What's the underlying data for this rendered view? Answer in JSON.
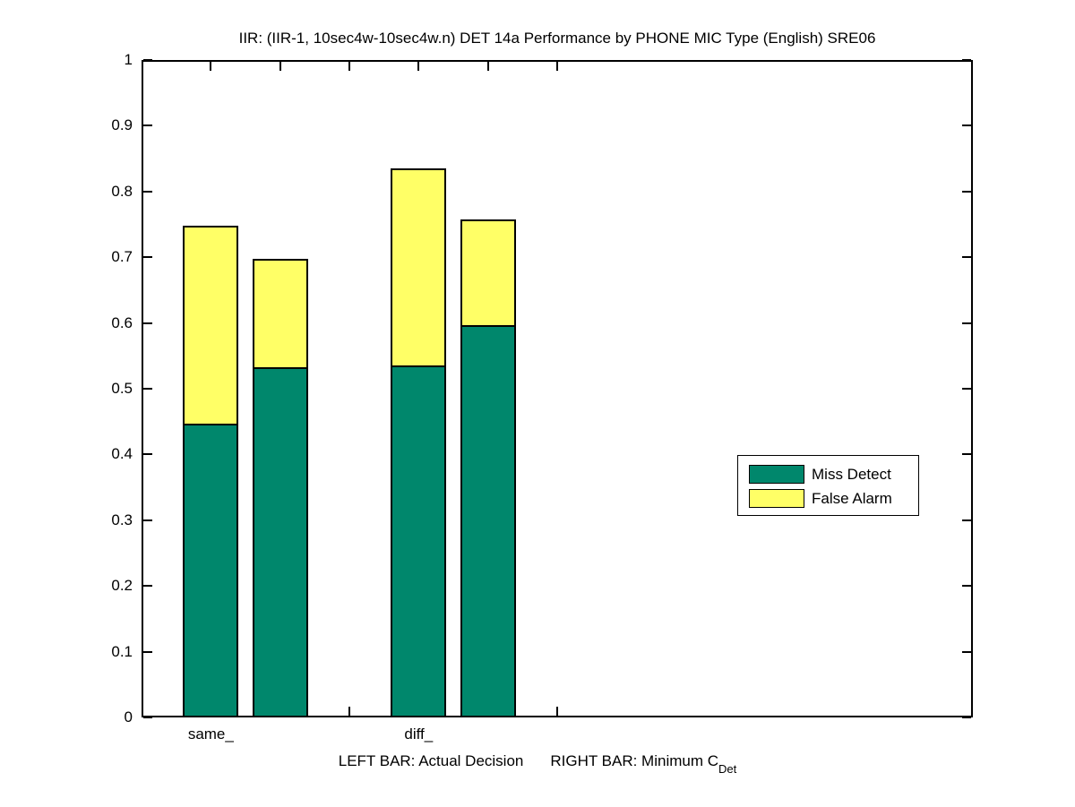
{
  "figure": {
    "title": "IIR: (IIR-1, 10sec4w-10sec4w.n) DET 14a Performance by PHONE MIC Type (English) SRE06",
    "footnote": {
      "left": "LEFT BAR: Actual Decision",
      "right": "RIGHT BAR: Minimum C",
      "subscript": "Det"
    }
  },
  "legend": {
    "entries": [
      {
        "label": "Miss Detect",
        "color": "#00876C"
      },
      {
        "label": "False Alarm",
        "color": "#FFFF66"
      }
    ]
  },
  "chart_data": {
    "type": "bar",
    "stacked": true,
    "title": "IIR: (IIR-1, 10sec4w-10sec4w.n) DET 14a Performance by PHONE MIC Type (English) SRE06",
    "categories": [
      "same_",
      "diff_"
    ],
    "bar_meaning": {
      "left_bar": "Actual Decision",
      "right_bar": "Minimum CDet"
    },
    "series": [
      {
        "name": "Miss Detect",
        "color": "#00876C",
        "values": [
          0.447,
          0.533,
          0.536,
          0.597
        ]
      },
      {
        "name": "False Alarm",
        "color": "#FFFF66",
        "values": [
          0.301,
          0.164,
          0.299,
          0.161
        ]
      }
    ],
    "bars": [
      {
        "x": 1,
        "group": "same_",
        "bar": "Actual Decision",
        "miss_detect": 0.447,
        "false_alarm": 0.301,
        "total": 0.748
      },
      {
        "x": 2,
        "group": "same_",
        "bar": "Minimum CDet",
        "miss_detect": 0.533,
        "false_alarm": 0.164,
        "total": 0.697
      },
      {
        "x": 4,
        "group": "diff_",
        "bar": "Actual Decision",
        "miss_detect": 0.536,
        "false_alarm": 0.299,
        "total": 0.835
      },
      {
        "x": 5,
        "group": "diff_",
        "bar": "Minimum CDet",
        "miss_detect": 0.597,
        "false_alarm": 0.161,
        "total": 0.758
      }
    ],
    "bar_width": 0.8,
    "xlim": [
      0,
      12
    ],
    "ylim": [
      0,
      1
    ],
    "xticks": [
      1,
      2,
      3,
      4,
      5,
      6
    ],
    "xticklabels": [
      {
        "pos": 1,
        "label": "same_"
      },
      {
        "pos": 4,
        "label": "diff_"
      }
    ],
    "yticks": [
      "0",
      "0.1",
      "0.2",
      "0.3",
      "0.4",
      "0.5",
      "0.6",
      "0.7",
      "0.8",
      "0.9",
      "1"
    ],
    "grid": false,
    "legend_position": "middle-right",
    "edge_color": "#000000",
    "background": "#FFFFFF",
    "xlabel": "LEFT BAR: Actual Decision      RIGHT BAR: Minimum C_Det",
    "ylabel": ""
  }
}
